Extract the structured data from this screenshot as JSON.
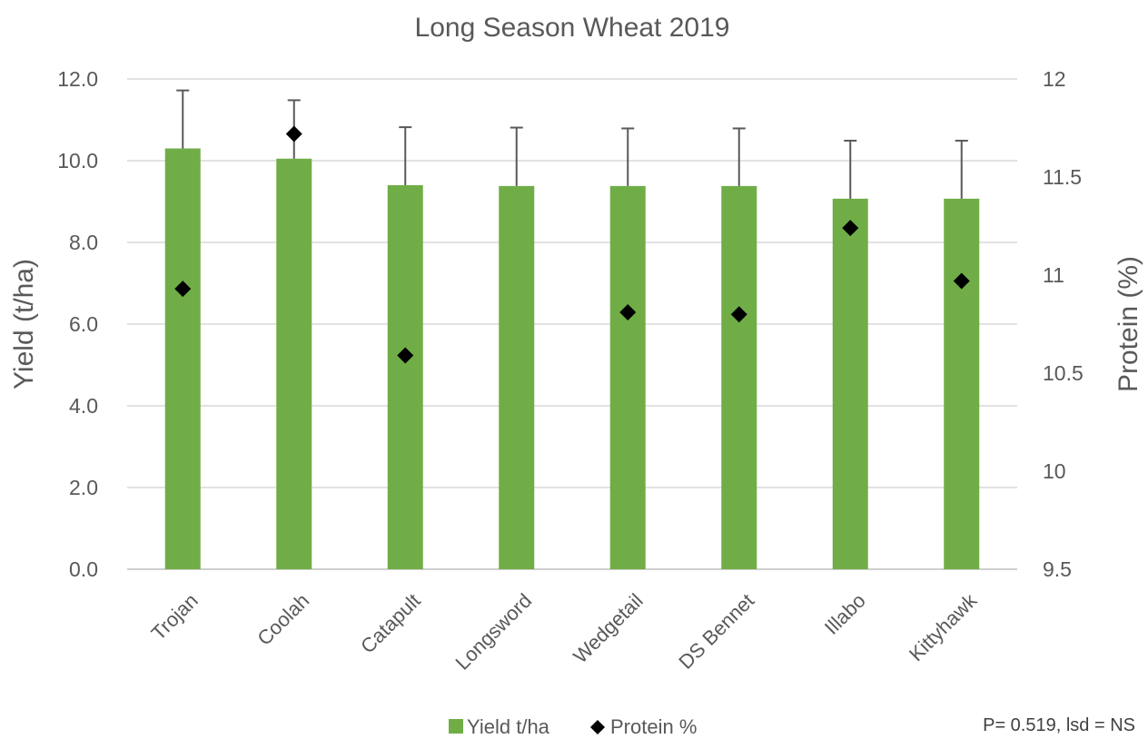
{
  "chart_data": {
    "type": "bar",
    "title": "Long Season Wheat 2019",
    "ylabel": "Yield (t/ha)",
    "y2label": "Protein (%)",
    "ylim": [
      0,
      12
    ],
    "y_ticks": [
      "0.0",
      "2.0",
      "4.0",
      "6.0",
      "8.0",
      "10.0",
      "12.0"
    ],
    "y2lim": [
      9.5,
      12
    ],
    "y2_ticks": [
      "9.5",
      "10",
      "10.5",
      "11",
      "11.5",
      "12"
    ],
    "grid": true,
    "legend_position": "bottom",
    "categories": [
      "Trojan",
      "Coolah",
      "Catapult",
      "Longsword",
      "Wedgetail",
      "DS Bennet",
      "Illabo",
      "Kittyhawk"
    ],
    "series": [
      {
        "name": "Yield t/ha",
        "type": "bar",
        "axis": "left",
        "color": "#70ad47",
        "values": [
          10.3,
          10.05,
          9.4,
          9.38,
          9.38,
          9.38,
          9.07,
          9.07
        ],
        "error_upper": [
          1.42,
          1.43,
          1.42,
          1.43,
          1.41,
          1.41,
          1.42,
          1.42
        ]
      },
      {
        "name": "Protein %",
        "type": "scatter",
        "marker": "diamond",
        "axis": "right",
        "color": "#000000",
        "values": [
          10.93,
          11.72,
          10.59,
          null,
          10.81,
          10.8,
          11.24,
          10.97
        ]
      }
    ],
    "annotation": "P= 0.519, lsd = NS"
  }
}
